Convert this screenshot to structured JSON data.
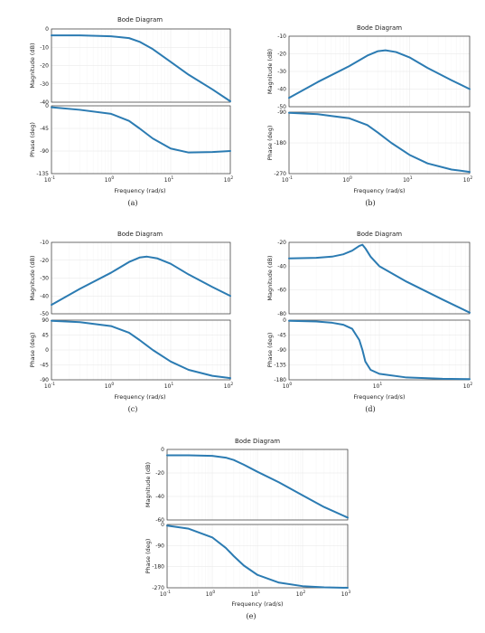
{
  "colors": {
    "curve": "#2b7bb2",
    "frame": "#333333"
  },
  "chart_data": [
    {
      "type": "line",
      "caption": "(a)",
      "title": "Bode Diagram",
      "xlabel": "Frequency  (rad/s)",
      "xscale": "log",
      "xlim": [
        0.1,
        100
      ],
      "xticks": [
        {
          "b": "10",
          "e": "-1"
        },
        {
          "b": "10",
          "e": "0"
        },
        {
          "b": "10",
          "e": "1"
        },
        {
          "b": "10",
          "e": "2"
        }
      ],
      "grid": true,
      "magnitude": {
        "ylabel": "Magnitude (dB)",
        "ylim": [
          -40,
          0
        ],
        "yticks": [
          "0",
          "-10",
          "-20",
          "-30",
          "-40"
        ],
        "ytick_values": [
          0,
          -10,
          -20,
          -30,
          -40
        ],
        "series": [
          {
            "x": [
              0.1,
              0.3,
              1,
              2,
              3,
              5,
              10,
              20,
              50,
              100
            ],
            "y": [
              -3.5,
              -3.5,
              -4,
              -5,
              -7,
              -11,
              -18,
              -25,
              -33,
              -39.5
            ]
          }
        ]
      },
      "phase": {
        "ylabel": "Phase (deg)",
        "ylim": [
          -135,
          0
        ],
        "yticks": [
          "0",
          "-45",
          "-90",
          "-135"
        ],
        "ytick_values": [
          0,
          -45,
          -90,
          -135
        ],
        "series": [
          {
            "x": [
              0.1,
              0.3,
              1,
              2,
              3,
              5,
              10,
              20,
              50,
              100
            ],
            "y": [
              -3,
              -8,
              -16,
              -30,
              -45,
              -65,
              -85,
              -93,
              -92,
              -90
            ]
          }
        ]
      }
    },
    {
      "type": "line",
      "caption": "(b)",
      "title": "Bode Diagram",
      "xlabel": "Frequency  (rad/s)",
      "xscale": "log",
      "xlim": [
        0.1,
        100
      ],
      "xticks": [
        {
          "b": "10",
          "e": "-1"
        },
        {
          "b": "10",
          "e": "0"
        },
        {
          "b": "10",
          "e": "1"
        },
        {
          "b": "10",
          "e": "2"
        }
      ],
      "grid": true,
      "magnitude": {
        "ylabel": "Magnitude (dB)",
        "ylim": [
          -50,
          -10
        ],
        "yticks": [
          "-10",
          "-20",
          "-30",
          "-40",
          "-50"
        ],
        "ytick_values": [
          -10,
          -20,
          -30,
          -40,
          -50
        ],
        "series": [
          {
            "x": [
              0.1,
              0.3,
              1,
              2,
              3,
              4,
              6,
              10,
              20,
              50,
              100
            ],
            "y": [
              -45,
              -36,
              -27,
              -21,
              -18.5,
              -18,
              -19,
              -22,
              -28,
              -35,
              -40
            ]
          }
        ]
      },
      "phase": {
        "ylabel": "Phase (deg)",
        "ylim": [
          -270,
          -90
        ],
        "yticks": [
          "-90",
          "-180",
          "-270"
        ],
        "ytick_values": [
          -90,
          -180,
          -270
        ],
        "series": [
          {
            "x": [
              0.1,
              0.3,
              1,
              2,
              3,
              5,
              10,
              20,
              50,
              100
            ],
            "y": [
              -92,
              -96,
              -108,
              -128,
              -150,
              -180,
              -215,
              -240,
              -258,
              -265
            ]
          }
        ]
      }
    },
    {
      "type": "line",
      "caption": "(c)",
      "title": "Bode Diagram",
      "xlabel": "Frequency  (rad/s)",
      "xscale": "log",
      "xlim": [
        0.1,
        100
      ],
      "xticks": [
        {
          "b": "10",
          "e": "-1"
        },
        {
          "b": "10",
          "e": "0"
        },
        {
          "b": "10",
          "e": "1"
        },
        {
          "b": "10",
          "e": "2"
        }
      ],
      "grid": true,
      "magnitude": {
        "ylabel": "Magnitude (dB)",
        "ylim": [
          -50,
          -10
        ],
        "yticks": [
          "-10",
          "-20",
          "-30",
          "-40",
          "-50"
        ],
        "ytick_values": [
          -10,
          -20,
          -30,
          -40,
          -50
        ],
        "series": [
          {
            "x": [
              0.1,
              0.3,
              1,
              2,
              3,
              4,
              6,
              10,
              20,
              50,
              100
            ],
            "y": [
              -45,
              -36,
              -27,
              -21,
              -18.5,
              -18,
              -19,
              -22,
              -28,
              -35,
              -40
            ]
          }
        ]
      },
      "phase": {
        "ylabel": "Phase (deg)",
        "ylim": [
          -90,
          90
        ],
        "yticks": [
          "90",
          "45",
          "0",
          "-45",
          "-90"
        ],
        "ytick_values": [
          90,
          45,
          0,
          -45,
          -90
        ],
        "series": [
          {
            "x": [
              0.1,
              0.3,
              1,
              2,
              3,
              5,
              10,
              20,
              50,
              100
            ],
            "y": [
              88,
              84,
              72,
              52,
              30,
              0,
              -35,
              -60,
              -78,
              -85
            ]
          }
        ]
      }
    },
    {
      "type": "line",
      "caption": "(d)",
      "title": "Bode Diagram",
      "xlabel": "Frequency  (rad/s)",
      "xscale": "log",
      "xlim": [
        1,
        100
      ],
      "xticks": [
        {
          "b": "10",
          "e": "0"
        },
        {
          "b": "10",
          "e": "1"
        },
        {
          "b": "10",
          "e": "2"
        }
      ],
      "grid": true,
      "magnitude": {
        "ylabel": "Magnitude (dB)",
        "ylim": [
          -80,
          -20
        ],
        "yticks": [
          "-20",
          "-40",
          "-60",
          "-80"
        ],
        "ytick_values": [
          -20,
          -40,
          -60,
          -80
        ],
        "series": [
          {
            "x": [
              1,
              2,
              3,
              4,
              5,
              6,
              6.5,
              7,
              8,
              10,
              20,
              50,
              100
            ],
            "y": [
              -33.5,
              -33,
              -32,
              -30,
              -27,
              -23,
              -22,
              -25,
              -32,
              -40,
              -53,
              -68,
              -79
            ]
          }
        ]
      },
      "phase": {
        "ylabel": "Phase (deg)",
        "ylim": [
          -180,
          0
        ],
        "yticks": [
          "0",
          "-45",
          "-90",
          "-135",
          "-180"
        ],
        "ytick_values": [
          0,
          -45,
          -90,
          -135,
          -180
        ],
        "series": [
          {
            "x": [
              1,
              2,
              3,
              4,
              5,
              6,
              6.5,
              7,
              8,
              10,
              20,
              50,
              100
            ],
            "y": [
              -2,
              -4,
              -8,
              -14,
              -26,
              -60,
              -90,
              -125,
              -150,
              -162,
              -173,
              -177,
              -178
            ]
          }
        ]
      }
    },
    {
      "type": "line",
      "caption": "(e)",
      "title": "Bode Diagram",
      "xlabel": "Frequency  (rad/s)",
      "xscale": "log",
      "xlim": [
        0.1,
        1000
      ],
      "xticks": [
        {
          "b": "10",
          "e": "-1"
        },
        {
          "b": "10",
          "e": "0"
        },
        {
          "b": "10",
          "e": "1"
        },
        {
          "b": "10",
          "e": "2"
        },
        {
          "b": "10",
          "e": "3"
        }
      ],
      "grid": true,
      "magnitude": {
        "ylabel": "Magnitude (dB)",
        "ylim": [
          -60,
          0
        ],
        "yticks": [
          "0",
          "-20",
          "-40",
          "-60"
        ],
        "ytick_values": [
          0,
          -20,
          -40,
          -60
        ],
        "series": [
          {
            "x": [
              0.1,
              0.3,
              1,
              2,
              3,
              5,
              10,
              30,
              100,
              300,
              1000
            ],
            "y": [
              -5,
              -5,
              -5.5,
              -7,
              -9,
              -13,
              -19,
              -28,
              -39,
              -49,
              -58
            ]
          }
        ]
      },
      "phase": {
        "ylabel": "Phase (deg)",
        "ylim": [
          -270,
          0
        ],
        "yticks": [
          "0",
          "-90",
          "-180",
          "-270"
        ],
        "ytick_values": [
          0,
          -90,
          -180,
          -270
        ],
        "series": [
          {
            "x": [
              0.1,
              0.3,
              1,
              2,
              3,
              5,
              10,
              30,
              100,
              300,
              1000
            ],
            "y": [
              -5,
              -18,
              -55,
              -100,
              -135,
              -175,
              -215,
              -248,
              -263,
              -268,
              -270
            ]
          }
        ]
      }
    }
  ]
}
